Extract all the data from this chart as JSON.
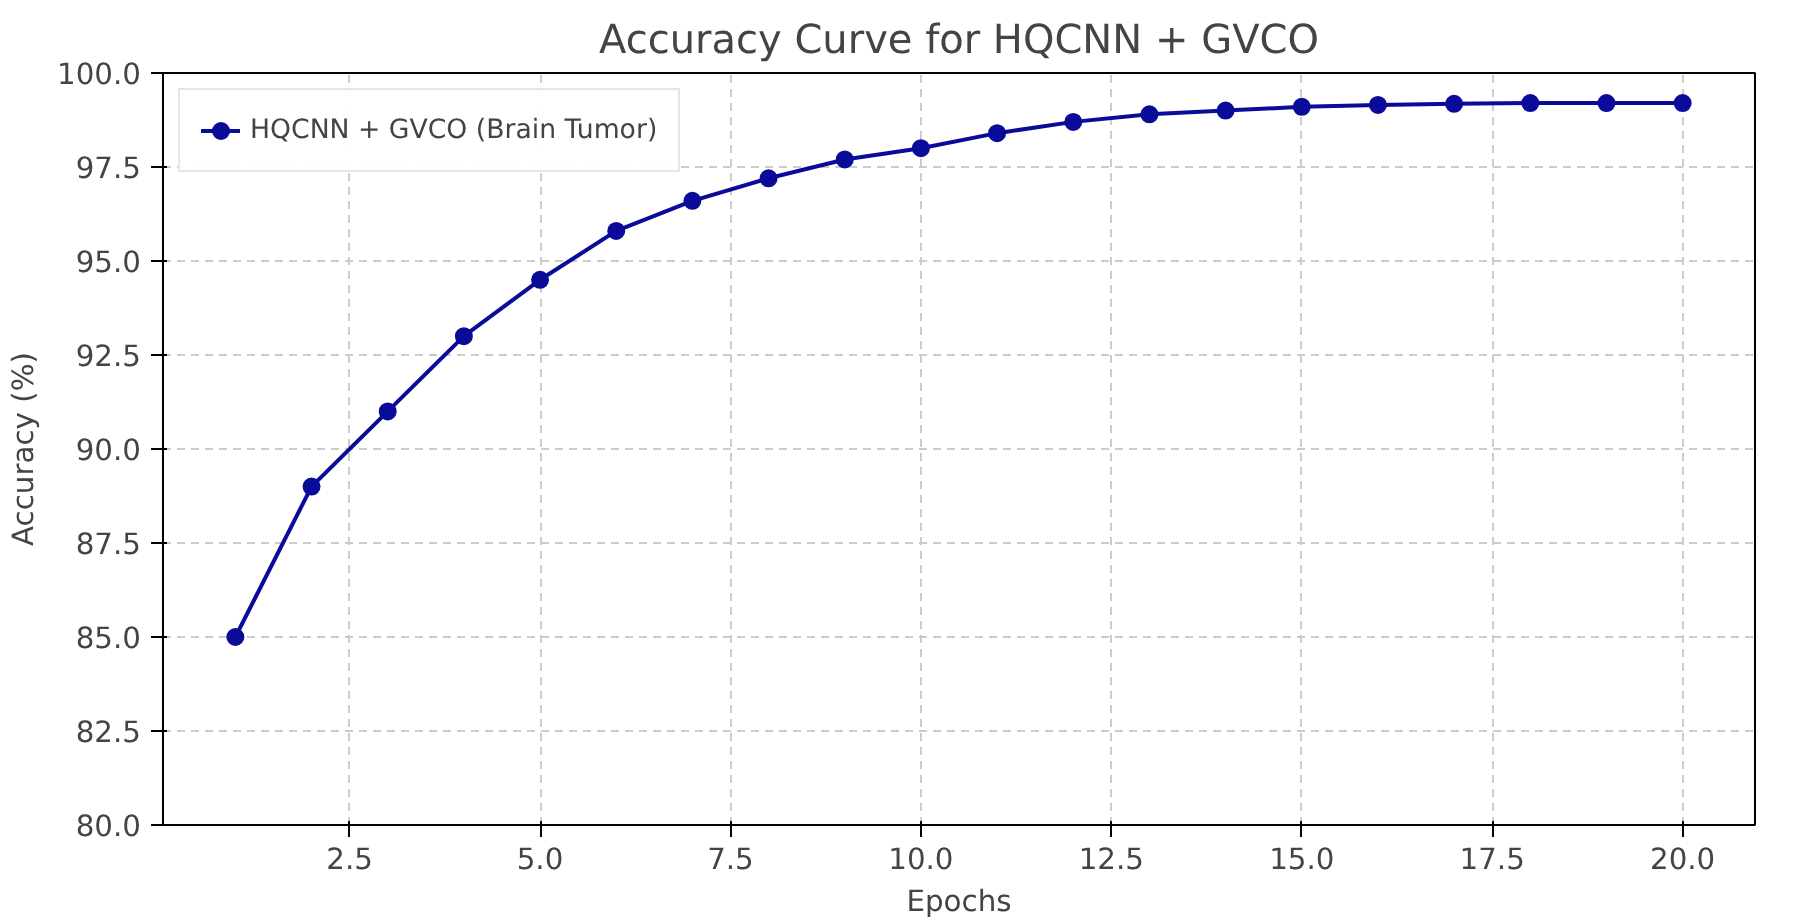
{
  "chart_data": {
    "type": "line",
    "title": "Accuracy Curve for HQCNN + GVCO",
    "xlabel": "Epochs",
    "ylabel": "Accuracy (%)",
    "x": [
      1,
      2,
      3,
      4,
      5,
      6,
      7,
      8,
      9,
      10,
      11,
      12,
      13,
      14,
      15,
      16,
      17,
      18,
      19,
      20
    ],
    "series": [
      {
        "name": "HQCNN + GVCO (Brain Tumor)",
        "color": "#0b0b9a",
        "values": [
          85.0,
          89.0,
          91.0,
          93.0,
          94.5,
          95.8,
          96.6,
          97.2,
          97.7,
          98.0,
          98.4,
          98.7,
          98.9,
          99.0,
          99.1,
          99.15,
          99.18,
          99.2,
          99.2,
          99.2
        ]
      }
    ],
    "xlim": [
      0.05,
      20.95
    ],
    "ylim": [
      80,
      100
    ],
    "xticks": [
      {
        "value": 2.5,
        "label": "2.5"
      },
      {
        "value": 5,
        "label": "5.0"
      },
      {
        "value": 7.5,
        "label": "7.5"
      },
      {
        "value": 10,
        "label": "10.0"
      },
      {
        "value": 12.5,
        "label": "12.5"
      },
      {
        "value": 15,
        "label": "15.0"
      },
      {
        "value": 17.5,
        "label": "17.5"
      },
      {
        "value": 20,
        "label": "20.0"
      }
    ],
    "yticks": [
      {
        "value": 80,
        "label": "80.0"
      },
      {
        "value": 82.5,
        "label": "82.5"
      },
      {
        "value": 85,
        "label": "85.0"
      },
      {
        "value": 87.5,
        "label": "87.5"
      },
      {
        "value": 90,
        "label": "90.0"
      },
      {
        "value": 92.5,
        "label": "92.5"
      },
      {
        "value": 95,
        "label": "95.0"
      },
      {
        "value": 97.5,
        "label": "97.5"
      },
      {
        "value": 100,
        "label": "100.0"
      }
    ],
    "grid": true,
    "legend": "top left",
    "marker": "circle",
    "line_style": "solid"
  }
}
